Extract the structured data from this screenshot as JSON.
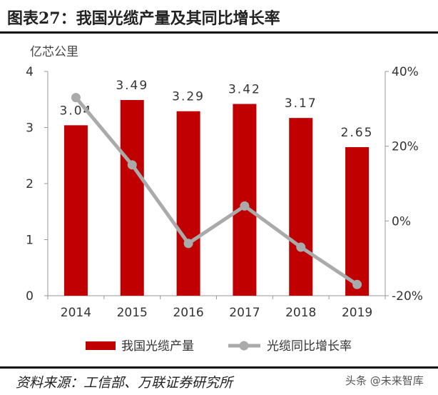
{
  "title": "图表27：我国光缆产量及其同比增长率",
  "source": "资料来源：工信部、万联证券研究所",
  "watermark": "头条 @未来智库",
  "chart_data": {
    "type": "bar",
    "categories": [
      "2014",
      "2015",
      "2016",
      "2017",
      "2018",
      "2019"
    ],
    "series": [
      {
        "name": "我国光缆产量",
        "type": "bar",
        "axis": "left",
        "color": "#c00000",
        "values": [
          3.04,
          3.49,
          3.29,
          3.42,
          3.17,
          2.65
        ],
        "labels": [
          "3.04",
          "3.49",
          "3.29",
          "3.42",
          "3.17",
          "2.65"
        ]
      },
      {
        "name": "光缆同比增长率",
        "type": "line",
        "axis": "right",
        "color": "#aaaaaa",
        "values": [
          33,
          15,
          -6,
          4,
          -7,
          -17
        ]
      }
    ],
    "ylabel": "亿芯公里",
    "ylim": [
      0,
      4
    ],
    "yticks": [
      "0",
      "1",
      "2",
      "3",
      "4"
    ],
    "y2lim": [
      -20,
      40
    ],
    "y2ticks": [
      "-20%",
      "0%",
      "20%",
      "40%"
    ],
    "legend_position": "bottom",
    "grid": false
  }
}
